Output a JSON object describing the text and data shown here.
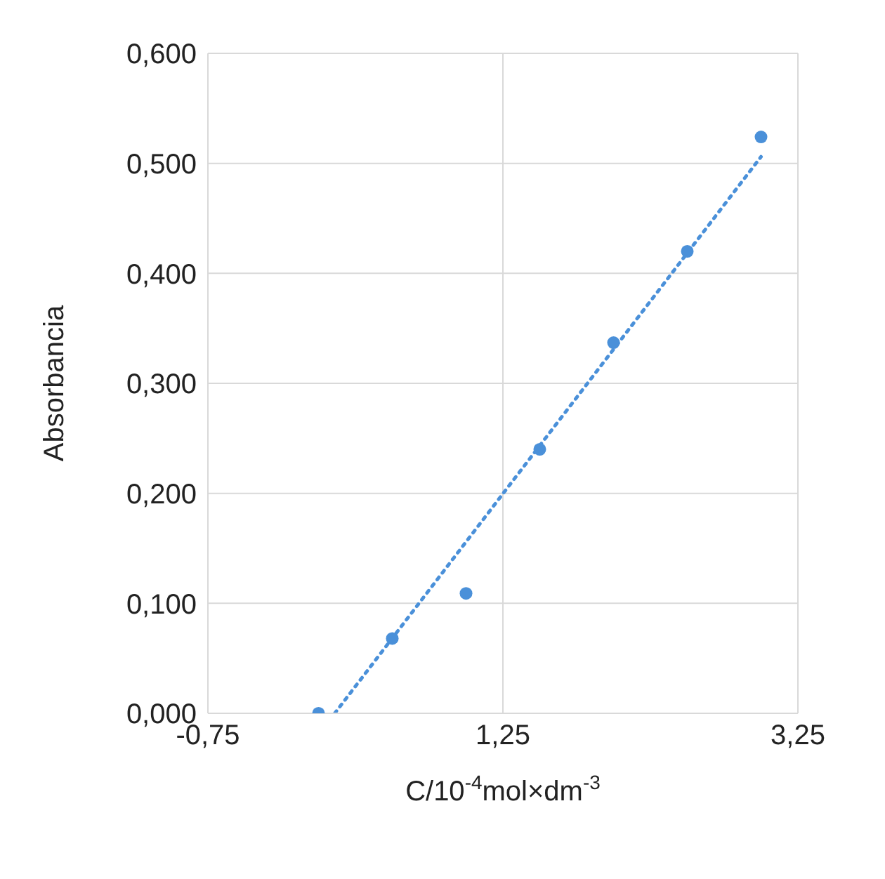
{
  "chart_data": {
    "type": "scatter",
    "xlabel": "C/10$^{-4}$mol×dm$^{-3}$",
    "ylabel": "Absorbancia",
    "x": [
      0,
      0.5,
      1.0,
      1.5,
      2.0,
      2.5,
      3.0
    ],
    "series": [
      {
        "type": "scatter",
        "color": "#4a90d9",
        "marker": "circle",
        "values": [
          0,
          0.068,
          0.109,
          0.24,
          0.337,
          0.42,
          0.524
        ]
      },
      {
        "type": "line",
        "color": "#4a90d9",
        "marker": "none",
        "line_style": "dotted",
        "x": [
          0.11,
          3.0
        ],
        "values": [
          0,
          0.506
        ]
      }
    ],
    "xlim": [
      -0.75,
      3.25
    ],
    "xticks": [
      {
        "value": -0.75,
        "label": "-0,75"
      },
      {
        "value": 1.25,
        "label": "1,25"
      },
      {
        "value": 3.25,
        "label": "3,25"
      }
    ],
    "ylim": [
      0,
      0.6
    ],
    "yticks": [
      {
        "value": 0,
        "label": "0,000"
      },
      {
        "value": 0.1,
        "label": "0,100"
      },
      {
        "value": 0.2,
        "label": "0,200"
      },
      {
        "value": 0.3,
        "label": "0,300"
      },
      {
        "value": 0.4,
        "label": "0,400"
      },
      {
        "value": 0.5,
        "label": "0,500"
      },
      {
        "value": 0.6,
        "label": "0,600"
      }
    ],
    "grid": true
  }
}
